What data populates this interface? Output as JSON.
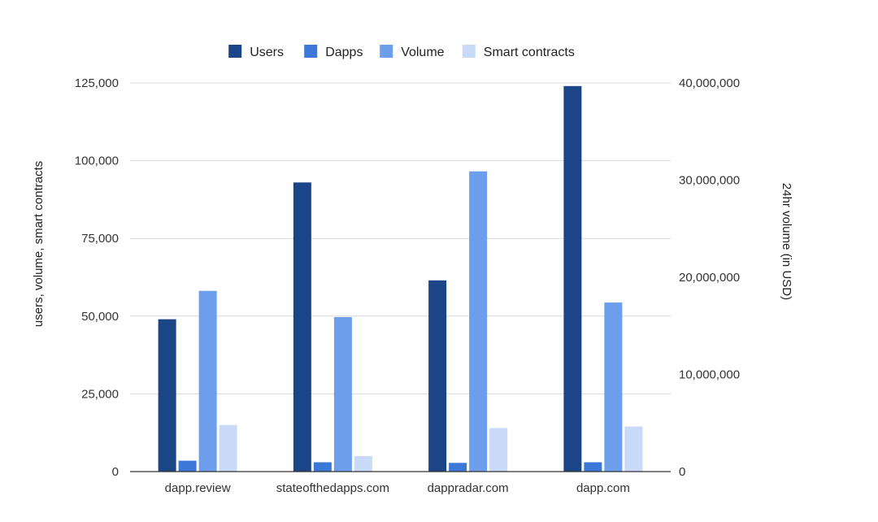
{
  "chart_data": {
    "type": "bar",
    "categories": [
      "dapp.review",
      "stateofthedapps.com",
      "dappradar.com",
      "dapp.com"
    ],
    "series": [
      {
        "name": "Users",
        "axis": "left",
        "color": "#1c4587",
        "values": [
          49000,
          93000,
          61500,
          124000
        ]
      },
      {
        "name": "Dapps",
        "axis": "left",
        "color": "#3c78d8",
        "values": [
          3500,
          3000,
          2800,
          3000
        ]
      },
      {
        "name": "Volume",
        "axis": "right",
        "color": "#6d9eeb",
        "values": [
          18600000,
          15900000,
          30900000,
          17400000
        ]
      },
      {
        "name": "Smart contracts",
        "axis": "left",
        "color": "#c9daf8",
        "values": [
          15000,
          5000,
          14000,
          14500
        ]
      }
    ],
    "y_left": {
      "label": "users, volume, smart contracts",
      "range": [
        0,
        125000
      ],
      "ticks": [
        0,
        25000,
        50000,
        75000,
        100000,
        125000
      ],
      "tick_labels": [
        "0",
        "25,000",
        "50,000",
        "75,000",
        "100,000",
        "125,000"
      ]
    },
    "y_right": {
      "label": "24hr volume (in USD)",
      "range": [
        0,
        40000000
      ],
      "ticks": [
        0,
        10000000,
        20000000,
        30000000,
        40000000
      ],
      "tick_labels": [
        "0",
        "10,000,000",
        "20,000,000",
        "30,000,000",
        "40,000,000"
      ]
    },
    "grid": true,
    "legend_position": "top-center"
  }
}
